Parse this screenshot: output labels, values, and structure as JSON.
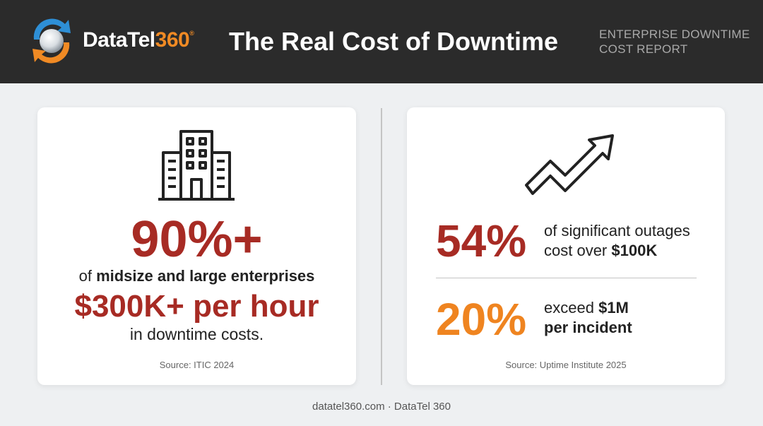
{
  "header": {
    "brand_name": "DataTel",
    "brand_number": "360",
    "brand_mark": "®",
    "title": "The Real Cost of Downtime",
    "report_label_line1": "ENTERPRISE DOWNTIME",
    "report_label_line2": "COST REPORT",
    "logo_icon": "circular-arrows-globe-logo"
  },
  "left_card": {
    "icon": "office-building-icon",
    "stat": "90%+",
    "line1_prefix": "of ",
    "line1_bold": "midsize and large enterprises",
    "line2": "$300K+ per hour",
    "line3": "in downtime costs.",
    "source": "Source: ITIC 2024"
  },
  "right_card": {
    "icon": "trend-up-arrow-icon",
    "stat1": "54%",
    "stat1_text_line1": "of significant outages",
    "stat1_text_line2_prefix": "cost over ",
    "stat1_text_line2_bold": "$100K",
    "stat2": "20%",
    "stat2_text_line1_prefix": "exceed ",
    "stat2_text_line1_bold": "$1M",
    "stat2_text_line2_bold": "per incident",
    "source": "Source: Uptime Institute 2025"
  },
  "footer": {
    "text": "datatel360.com · DataTel 360"
  },
  "colors": {
    "header_bg": "#2b2b2b",
    "accent_red": "#a72b24",
    "accent_orange": "#ef8420",
    "logo_blue": "#2e8fd6",
    "page_bg": "#eef0f2"
  }
}
